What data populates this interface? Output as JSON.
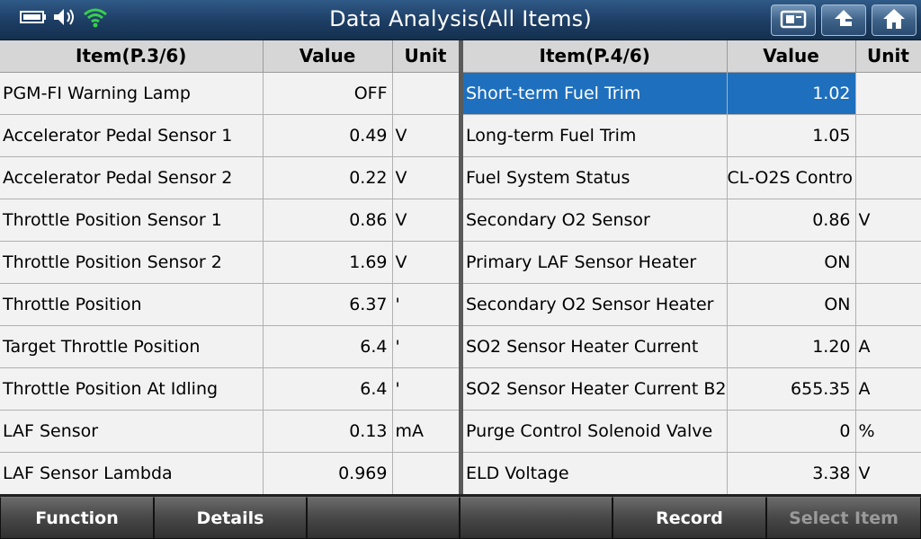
{
  "header": {
    "title": "Data Analysis(All Items)",
    "icons": [
      "battery-icon",
      "speaker-icon",
      "wifi-icon"
    ],
    "buttons": [
      "screenshot-icon",
      "back-icon",
      "home-icon"
    ]
  },
  "left_table": {
    "columns": {
      "item": "Item(P.3/6)",
      "value": "Value",
      "unit": "Unit"
    },
    "rows": [
      {
        "name": "PGM-FI Warning Lamp",
        "value": "OFF",
        "unit": ""
      },
      {
        "name": "Accelerator Pedal Sensor 1",
        "value": "0.49",
        "unit": "V"
      },
      {
        "name": "Accelerator Pedal Sensor 2",
        "value": "0.22",
        "unit": "V"
      },
      {
        "name": "Throttle Position Sensor 1",
        "value": "0.86",
        "unit": "V"
      },
      {
        "name": "Throttle Position Sensor 2",
        "value": "1.69",
        "unit": "V"
      },
      {
        "name": "Throttle Position",
        "value": "6.37",
        "unit": "'"
      },
      {
        "name": "Target Throttle Position",
        "value": "6.4",
        "unit": "'"
      },
      {
        "name": "Throttle Position At Idling",
        "value": "6.4",
        "unit": "'"
      },
      {
        "name": "LAF Sensor",
        "value": "0.13",
        "unit": "mA"
      },
      {
        "name": "LAF Sensor Lambda",
        "value": "0.969",
        "unit": ""
      }
    ]
  },
  "right_table": {
    "columns": {
      "item": "Item(P.4/6)",
      "value": "Value",
      "unit": "Unit"
    },
    "rows": [
      {
        "name": "Short-term Fuel Trim",
        "value": "1.02",
        "unit": ""
      },
      {
        "name": "Long-term Fuel Trim",
        "value": "1.05",
        "unit": ""
      },
      {
        "name": "Fuel System Status",
        "value": "CL-O2S Contro",
        "unit": ""
      },
      {
        "name": "Secondary O2 Sensor",
        "value": "0.86",
        "unit": "V"
      },
      {
        "name": "Primary LAF Sensor Heater",
        "value": "ON",
        "unit": ""
      },
      {
        "name": "Secondary O2 Sensor Heater",
        "value": "ON",
        "unit": ""
      },
      {
        "name": "SO2 Sensor Heater Current",
        "value": "1.20",
        "unit": "A"
      },
      {
        "name": "SO2 Sensor Heater Current B2",
        "value": "655.35",
        "unit": "A"
      },
      {
        "name": "Purge Control Solenoid Valve",
        "value": "0",
        "unit": "%"
      },
      {
        "name": "ELD Voltage",
        "value": "3.38",
        "unit": "V"
      }
    ],
    "selected_index": 0
  },
  "footer": {
    "buttons": [
      {
        "label": "Function",
        "enabled": true
      },
      {
        "label": "Details",
        "enabled": true
      },
      {
        "label": "",
        "enabled": true
      },
      {
        "label": "",
        "enabled": true
      },
      {
        "label": "Record",
        "enabled": true
      },
      {
        "label": "Select Item",
        "enabled": false
      }
    ]
  },
  "colors": {
    "selection": "#1e6fbd",
    "header_bg": "#1d3d63"
  }
}
